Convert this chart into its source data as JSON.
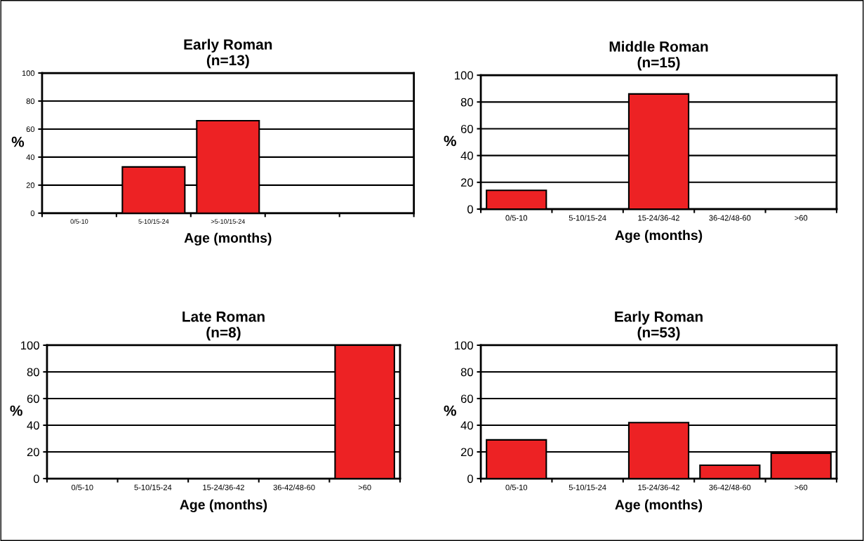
{
  "chart_data": [
    {
      "type": "bar",
      "title": "Early Roman\n(n=13)",
      "xlabel": "Age (months)",
      "ylabel": "%",
      "categories": [
        "0/5-10",
        "5-10/15-24",
        ">5-10/15-24",
        null,
        null
      ],
      "values": [
        0,
        33,
        66,
        null,
        null
      ],
      "color": "#ed2224",
      "ylim": [
        0,
        100
      ],
      "yticks": [
        0,
        20,
        40,
        60,
        80,
        100
      ],
      "grid": "y"
    },
    {
      "type": "bar",
      "title": "Middle Roman\n(n=15)",
      "xlabel": "Age (months)",
      "ylabel": "%",
      "categories": [
        "0/5-10",
        "5-10/15-24",
        "15-24/36-42",
        "36-42/48-60",
        ">60"
      ],
      "values": [
        14,
        0,
        86,
        0,
        0
      ],
      "color": "#ed2224",
      "ylim": [
        0,
        100
      ],
      "yticks": [
        0,
        20,
        40,
        60,
        80,
        100
      ],
      "grid": "y"
    },
    {
      "type": "bar",
      "title": "Late Roman\n(n=8)",
      "xlabel": "Age (months)",
      "ylabel": "%",
      "categories": [
        "0/5-10",
        "5-10/15-24",
        "15-24/36-42",
        "36-42/48-60",
        ">60"
      ],
      "values": [
        0,
        0,
        0,
        0,
        100
      ],
      "color": "#ed2224",
      "ylim": [
        0,
        100
      ],
      "yticks": [
        0,
        20,
        40,
        60,
        80,
        100
      ],
      "grid": "y"
    },
    {
      "type": "bar",
      "title": "Early Roman\n(n=53)",
      "xlabel": "Age (months)",
      "ylabel": "%",
      "categories": [
        "0/5-10",
        "5-10/15-24",
        "15-24/36-42",
        "36-42/48-60",
        ">60"
      ],
      "values": [
        29,
        0,
        42,
        10,
        19
      ],
      "color": "#ed2224",
      "ylim": [
        0,
        100
      ],
      "yticks": [
        0,
        20,
        40,
        60,
        80,
        100
      ],
      "grid": "y"
    }
  ]
}
